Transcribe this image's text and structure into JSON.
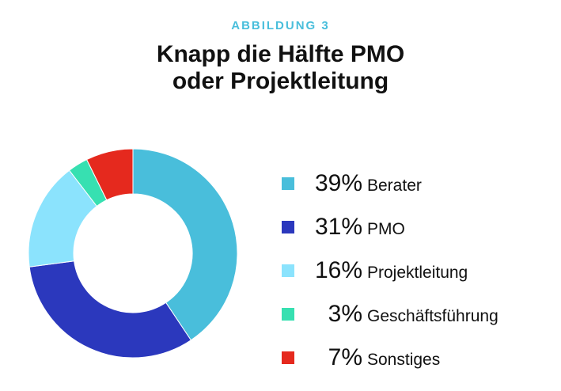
{
  "header": {
    "kicker": "ABBILDUNG 3",
    "title_line1": "Knapp die Hälfte PMO",
    "title_line2": "oder Projektleitung"
  },
  "chart_data": {
    "type": "pie",
    "variant": "donut",
    "title": "Knapp die Hälfte PMO oder Projektleitung",
    "legend_position": "right",
    "slices": [
      {
        "label": "Berater",
        "value": 39,
        "pct_label": "39%",
        "color": "#49bedb"
      },
      {
        "label": "PMO",
        "value": 31,
        "pct_label": "31%",
        "color": "#2b38bd"
      },
      {
        "label": "Projektleitung",
        "value": 16,
        "pct_label": "16%",
        "color": "#8be3fd"
      },
      {
        "label": "Geschäftsführung",
        "value": 3,
        "pct_label": "3%",
        "color": "#37e0b1"
      },
      {
        "label": "Sonstiges",
        "value": 7,
        "pct_label": "7%",
        "color": "#e5291e"
      }
    ]
  }
}
